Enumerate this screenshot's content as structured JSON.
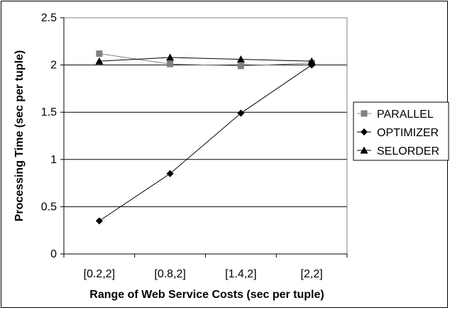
{
  "chart_data": {
    "type": "line",
    "title": "",
    "xlabel": "Range of Web Service Costs (sec per tuple)",
    "ylabel": "Processing Time (sec per tuple)",
    "categories": [
      "[0.2,2]",
      "[0.8,2]",
      "[1.4,2]",
      "[2,2]"
    ],
    "ylim": [
      0,
      2.5
    ],
    "yticks": [
      "0",
      "0.5",
      "1",
      "1.5",
      "2",
      "2.5"
    ],
    "grid": "horizontal",
    "legend_position": "right",
    "series": [
      {
        "name": "PARALLEL",
        "marker": "square",
        "color": "#808080",
        "values": [
          2.12,
          2.01,
          1.99,
          2.02
        ]
      },
      {
        "name": "OPTIMIZER",
        "marker": "diamond",
        "color": "#000000",
        "values": [
          0.35,
          0.85,
          1.49,
          2.0
        ]
      },
      {
        "name": "SELORDER",
        "marker": "triangle",
        "color": "#000000",
        "values": [
          2.04,
          2.08,
          2.06,
          2.04
        ]
      }
    ]
  }
}
